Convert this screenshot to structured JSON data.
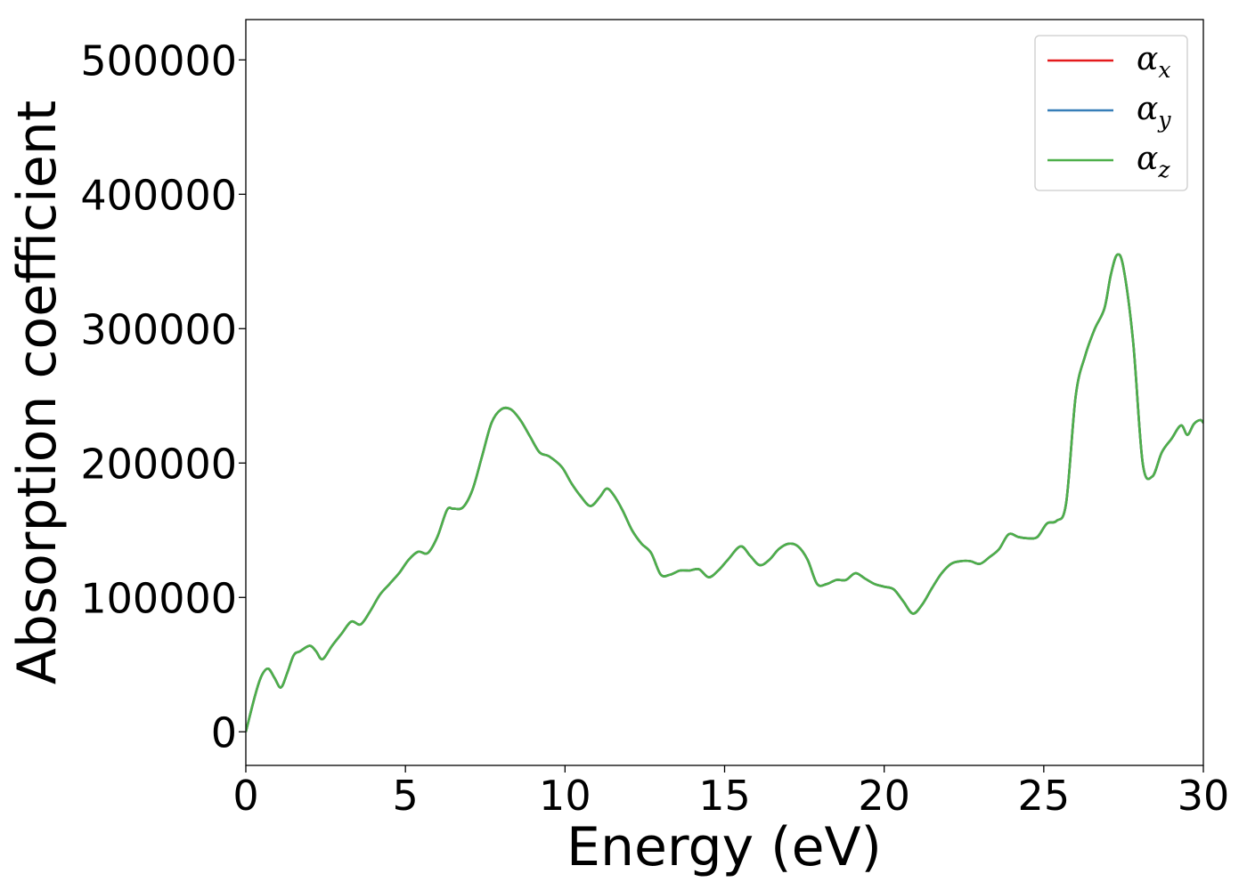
{
  "chart_data": {
    "type": "line",
    "title": "",
    "xlabel": "Energy (eV)",
    "ylabel": "Absorption coefficient",
    "xlim": [
      0,
      30
    ],
    "ylim": [
      -25000,
      530000
    ],
    "xticks": [
      0,
      5,
      10,
      15,
      20,
      25,
      30
    ],
    "yticks": [
      0,
      100000,
      200000,
      300000,
      400000,
      500000
    ],
    "xtick_labels": [
      "0",
      "5",
      "10",
      "15",
      "20",
      "25",
      "30"
    ],
    "ytick_labels": [
      "0",
      "100000",
      "200000",
      "300000",
      "400000",
      "500000"
    ],
    "grid": false,
    "legend_position": "top-right",
    "x": [
      0,
      0.3,
      0.5,
      0.7,
      0.9,
      1.1,
      1.3,
      1.5,
      1.7,
      2.0,
      2.2,
      2.4,
      2.7,
      3.0,
      3.3,
      3.6,
      3.9,
      4.2,
      4.5,
      4.8,
      5.1,
      5.4,
      5.7,
      6.0,
      6.3,
      6.5,
      6.8,
      7.1,
      7.4,
      7.7,
      8.0,
      8.3,
      8.6,
      8.9,
      9.2,
      9.5,
      9.9,
      10.2,
      10.5,
      10.8,
      11.1,
      11.3,
      11.5,
      11.8,
      12.1,
      12.4,
      12.7,
      13.0,
      13.3,
      13.6,
      13.9,
      14.2,
      14.5,
      14.8,
      15.1,
      15.5,
      15.8,
      16.1,
      16.4,
      16.7,
      17.0,
      17.3,
      17.6,
      17.9,
      18.2,
      18.5,
      18.8,
      19.1,
      19.4,
      19.7,
      20.0,
      20.3,
      20.6,
      20.9,
      21.2,
      21.5,
      21.8,
      22.1,
      22.4,
      22.7,
      23.0,
      23.3,
      23.6,
      23.9,
      24.2,
      24.5,
      24.8,
      25.1,
      25.4,
      25.7,
      26.0,
      26.3,
      26.6,
      26.9,
      27.1,
      27.3,
      27.5,
      27.8,
      28.1,
      28.4,
      28.7,
      29.0,
      29.3,
      29.5,
      29.7,
      29.9,
      30.0
    ],
    "series": [
      {
        "name": "αx",
        "symbol": "α",
        "subscript": "x",
        "color": "#e41a1c",
        "values": [
          0,
          28000,
          42000,
          47000,
          40000,
          33000,
          44000,
          57000,
          60000,
          64000,
          60000,
          54000,
          64000,
          73000,
          82000,
          80000,
          90000,
          102000,
          110000,
          118000,
          128000,
          134000,
          133000,
          145000,
          165000,
          166000,
          167000,
          180000,
          205000,
          230000,
          240000,
          240000,
          232000,
          220000,
          208000,
          205000,
          197000,
          185000,
          175000,
          168000,
          175000,
          181000,
          177000,
          165000,
          150000,
          140000,
          133000,
          117000,
          117000,
          120000,
          120000,
          121000,
          115000,
          120000,
          128000,
          138000,
          131000,
          124000,
          128000,
          136000,
          140000,
          138000,
          128000,
          110000,
          110000,
          113000,
          113000,
          118000,
          114000,
          110000,
          108000,
          106000,
          97000,
          88000,
          95000,
          107000,
          118000,
          125000,
          127000,
          127000,
          125000,
          130000,
          136000,
          147000,
          145000,
          144000,
          145000,
          155000,
          157000,
          170000,
          250000,
          280000,
          300000,
          315000,
          340000,
          355000,
          345000,
          290000,
          200000,
          190000,
          208000,
          218000,
          228000,
          221000,
          229000,
          232000,
          230000
        ]
      },
      {
        "name": "αy",
        "symbol": "α",
        "subscript": "y",
        "color": "#377eb8",
        "values": [
          0,
          28000,
          42000,
          47000,
          40000,
          33000,
          44000,
          57000,
          60000,
          64000,
          60000,
          54000,
          64000,
          73000,
          82000,
          80000,
          90000,
          102000,
          110000,
          118000,
          128000,
          134000,
          133000,
          145000,
          165000,
          166000,
          167000,
          180000,
          205000,
          230000,
          240000,
          240000,
          232000,
          220000,
          208000,
          205000,
          197000,
          185000,
          175000,
          168000,
          175000,
          181000,
          177000,
          165000,
          150000,
          140000,
          133000,
          117000,
          117000,
          120000,
          120000,
          121000,
          115000,
          120000,
          128000,
          138000,
          131000,
          124000,
          128000,
          136000,
          140000,
          138000,
          128000,
          110000,
          110000,
          113000,
          113000,
          118000,
          114000,
          110000,
          108000,
          106000,
          97000,
          88000,
          95000,
          107000,
          118000,
          125000,
          127000,
          127000,
          125000,
          130000,
          136000,
          147000,
          145000,
          144000,
          145000,
          155000,
          157000,
          170000,
          250000,
          280000,
          300000,
          315000,
          340000,
          355000,
          345000,
          290000,
          200000,
          190000,
          208000,
          218000,
          228000,
          221000,
          229000,
          232000,
          230000
        ]
      },
      {
        "name": "αz",
        "symbol": "α",
        "subscript": "z",
        "color": "#4daf4a",
        "values": [
          0,
          28000,
          42000,
          47000,
          40000,
          33000,
          44000,
          57000,
          60000,
          64000,
          60000,
          54000,
          64000,
          73000,
          82000,
          80000,
          90000,
          102000,
          110000,
          118000,
          128000,
          134000,
          133000,
          145000,
          165000,
          166000,
          167000,
          180000,
          205000,
          230000,
          240000,
          240000,
          232000,
          220000,
          208000,
          205000,
          197000,
          185000,
          175000,
          168000,
          175000,
          181000,
          177000,
          165000,
          150000,
          140000,
          133000,
          117000,
          117000,
          120000,
          120000,
          121000,
          115000,
          120000,
          128000,
          138000,
          131000,
          124000,
          128000,
          136000,
          140000,
          138000,
          128000,
          110000,
          110000,
          113000,
          113000,
          118000,
          114000,
          110000,
          108000,
          106000,
          97000,
          88000,
          95000,
          107000,
          118000,
          125000,
          127000,
          127000,
          125000,
          130000,
          136000,
          147000,
          145000,
          144000,
          145000,
          155000,
          157000,
          170000,
          250000,
          280000,
          300000,
          315000,
          340000,
          355000,
          345000,
          290000,
          200000,
          190000,
          208000,
          218000,
          228000,
          221000,
          229000,
          232000,
          230000
        ]
      }
    ]
  }
}
